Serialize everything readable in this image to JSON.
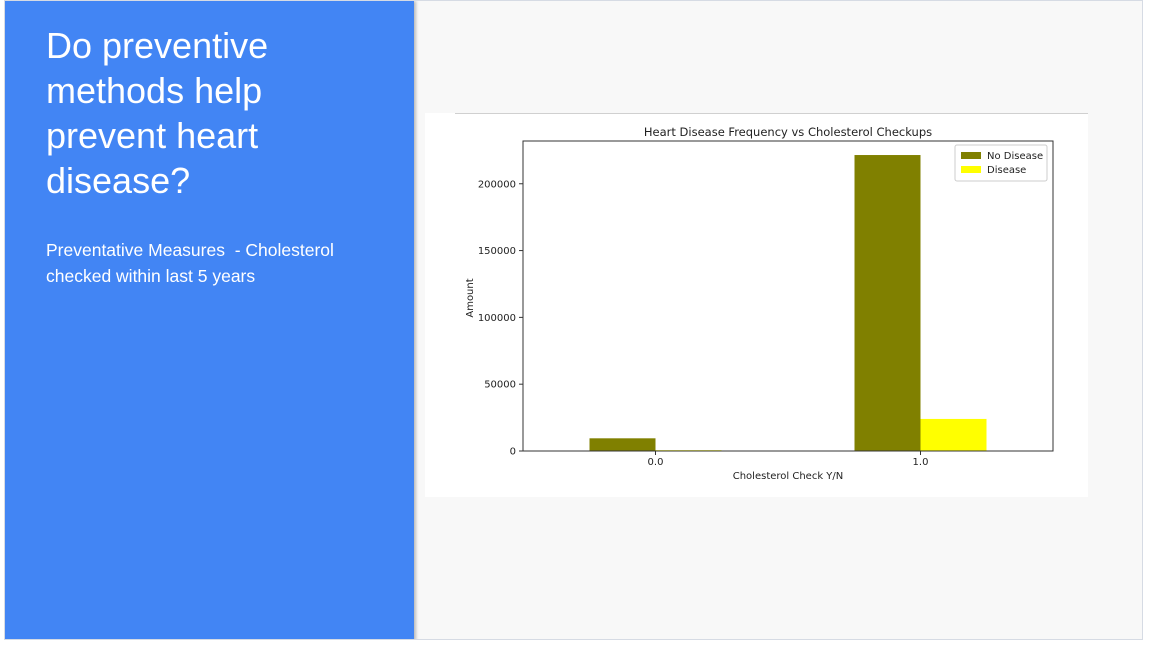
{
  "slide": {
    "title": "Do preventive methods help prevent heart disease?",
    "subtitle": "Preventative Measures  - Cholesterol checked within last 5 years"
  },
  "colors": {
    "panel": "#4285f4",
    "no_disease": "#808000",
    "disease": "#ffff00"
  },
  "chart_data": {
    "type": "bar",
    "title": "Heart Disease Frequency vs Cholesterol Checkups",
    "xlabel": "Cholesterol Check Y/N",
    "ylabel": "Amount",
    "categories": [
      "0.0",
      "1.0"
    ],
    "series": [
      {
        "name": "No Disease",
        "color": "#808000",
        "values": [
          9500,
          221500
        ]
      },
      {
        "name": "Disease",
        "color": "#ffff00",
        "values": [
          600,
          24000
        ]
      }
    ],
    "ylim": [
      0,
      232000
    ],
    "yticks": [
      0,
      50000,
      100000,
      150000,
      200000
    ],
    "legend": "top-right",
    "grid": false
  }
}
